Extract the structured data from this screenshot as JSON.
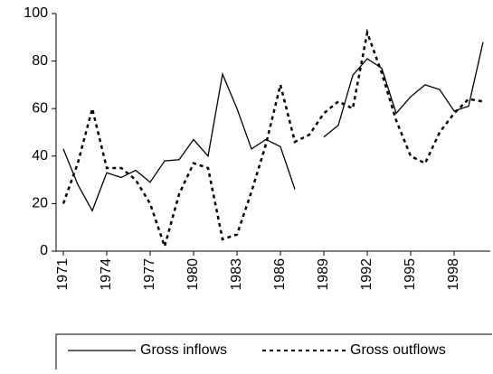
{
  "chart_data": {
    "type": "line",
    "categories": [
      "1971",
      null,
      null,
      "1974",
      null,
      null,
      "1977",
      null,
      null,
      "1980",
      null,
      null,
      "1983",
      null,
      null,
      "1986",
      null,
      null,
      "1989",
      null,
      null,
      "1992",
      null,
      null,
      "1995",
      null,
      null,
      "1998",
      null,
      null
    ],
    "series": [
      {
        "name": "Gross inflows",
        "color": "#000000",
        "dash": "none",
        "values": [
          43,
          28,
          17,
          33,
          31,
          34,
          29,
          38,
          38.5,
          47,
          40,
          74.5,
          60,
          43,
          47,
          44,
          26,
          null,
          48,
          53,
          74,
          81,
          77,
          58,
          65,
          70,
          68,
          59,
          61,
          88
        ]
      },
      {
        "name": "Gross outflows",
        "color": "#000000",
        "dash": "4 4",
        "values": [
          20,
          37,
          60,
          35,
          35,
          30,
          20,
          2,
          24,
          37,
          35,
          5,
          7,
          25,
          45,
          70,
          46,
          49,
          58,
          63,
          60,
          92,
          75,
          55,
          40,
          37,
          50,
          58,
          64,
          63
        ]
      }
    ],
    "ylim": [
      0,
      100
    ],
    "yticks": [
      0,
      20,
      40,
      60,
      80,
      100
    ],
    "grid": false
  }
}
